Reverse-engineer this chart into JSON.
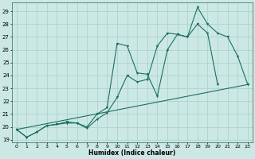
{
  "xlabel": "Humidex (Indice chaleur)",
  "bg_color": "#cce8e4",
  "grid_color": "#aad4cc",
  "line_color": "#1a7060",
  "xlim": [
    -0.5,
    23.5
  ],
  "ylim": [
    18.8,
    29.7
  ],
  "yticks": [
    19,
    20,
    21,
    22,
    23,
    24,
    25,
    26,
    27,
    28,
    29
  ],
  "xticks": [
    0,
    1,
    2,
    3,
    4,
    5,
    6,
    7,
    8,
    9,
    10,
    11,
    12,
    13,
    14,
    15,
    16,
    17,
    18,
    19,
    20,
    21,
    22,
    23
  ],
  "line1_x": [
    0,
    1,
    2,
    3,
    4,
    5,
    6,
    7,
    8,
    9,
    10,
    11,
    12,
    13,
    14,
    15,
    16,
    17,
    18,
    19,
    20,
    21,
    22,
    23
  ],
  "line1_y": [
    19.8,
    19.2,
    19.6,
    20.1,
    20.2,
    20.3,
    20.3,
    19.9,
    20.6,
    21.1,
    22.3,
    24.0,
    23.5,
    23.7,
    26.3,
    27.3,
    27.2,
    27.0,
    29.3,
    28.0,
    27.3,
    27.0,
    25.5,
    23.3
  ],
  "line2_x": [
    0,
    1,
    2,
    3,
    4,
    5,
    6,
    7,
    8,
    9,
    10,
    11,
    12,
    13,
    14,
    15,
    16,
    17,
    18,
    19,
    20
  ],
  "line2_y": [
    19.8,
    19.2,
    19.6,
    20.1,
    20.2,
    20.4,
    20.3,
    20.0,
    21.0,
    21.5,
    26.5,
    26.3,
    24.2,
    24.1,
    22.4,
    26.0,
    27.2,
    27.0,
    28.0,
    27.3,
    23.3
  ],
  "line3_x": [
    0,
    23
  ],
  "line3_y": [
    19.8,
    23.3
  ]
}
